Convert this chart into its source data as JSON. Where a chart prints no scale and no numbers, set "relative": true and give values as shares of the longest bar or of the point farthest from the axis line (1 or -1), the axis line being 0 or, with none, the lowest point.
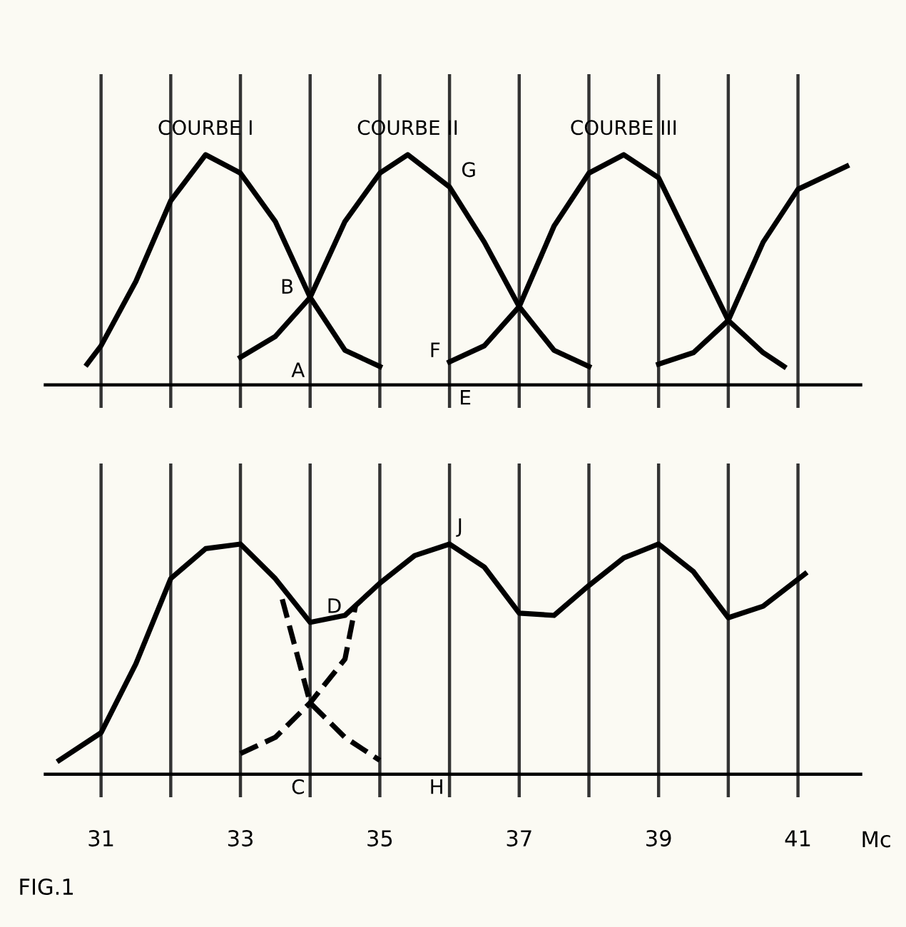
{
  "chart_data": [
    {
      "type": "line",
      "relative": true,
      "xlim": [
        30.2,
        41.9
      ],
      "grid": "x",
      "tick_labels": false,
      "legend": false,
      "marker": "none",
      "line_style": "solid",
      "xticks": [
        {
          "value": 31,
          "label": null
        },
        {
          "value": 32,
          "label": null
        },
        {
          "value": 33,
          "label": null
        },
        {
          "value": 34,
          "label": null
        },
        {
          "value": 35,
          "label": null
        },
        {
          "value": 36,
          "label": null
        },
        {
          "value": 37,
          "label": null
        },
        {
          "value": 38,
          "label": null
        },
        {
          "value": 39,
          "label": null
        },
        {
          "value": 40,
          "label": null
        },
        {
          "value": 41,
          "label": null
        }
      ],
      "series": [
        {
          "name": "COURBE I",
          "color": "#000000",
          "x": [
            30.8,
            31,
            31.5,
            32,
            32.5,
            33,
            33.5,
            34,
            34.5,
            35
          ],
          "values": [
            0.09,
            0.17,
            0.45,
            0.8,
            1.0,
            0.92,
            0.71,
            0.38,
            0.15,
            0.08
          ]
        },
        {
          "name": "COURBE II",
          "color": "#000000",
          "x": [
            33,
            33.5,
            34,
            34.5,
            35,
            35.4,
            36,
            36.5,
            37,
            37.5,
            38
          ],
          "values": [
            0.12,
            0.21,
            0.38,
            0.71,
            0.92,
            1.0,
            0.86,
            0.62,
            0.34,
            0.15,
            0.08
          ]
        },
        {
          "name": "COURBE III",
          "color": "#000000",
          "x": [
            36,
            36.5,
            37,
            37.5,
            38,
            38.5,
            39,
            39.5,
            40,
            40.5,
            40.8
          ],
          "values": [
            0.1,
            0.17,
            0.34,
            0.69,
            0.92,
            1.0,
            0.9,
            0.59,
            0.28,
            0.14,
            0.08
          ]
        },
        {
          "color": "#000000",
          "x": [
            39,
            39.5,
            40,
            40.5,
            41,
            41.7
          ],
          "values": [
            0.09,
            0.14,
            0.28,
            0.62,
            0.85,
            0.95
          ]
        }
      ],
      "annotations": [
        "A",
        "B",
        "E",
        "F",
        "G"
      ]
    },
    {
      "type": "line",
      "relative": true,
      "xlim": [
        30.2,
        41.9
      ],
      "grid": "x",
      "tick_labels": "x",
      "legend": false,
      "marker": "none",
      "xlabel": "Mc",
      "xticks": [
        31,
        {
          "value": 32,
          "label": null
        },
        33,
        {
          "value": 34,
          "label": null
        },
        35,
        {
          "value": 36,
          "label": null
        },
        37,
        {
          "value": 38,
          "label": null
        },
        39,
        {
          "value": 40,
          "label": null
        },
        41
      ],
      "series": [
        {
          "color": "#000000",
          "line_style": "solid",
          "x": [
            30.4,
            31,
            31.5,
            32,
            32.5,
            33,
            33.5,
            34,
            34.5,
            35,
            35.5,
            36,
            36.5,
            37,
            37.5,
            38,
            38.5,
            39,
            39.5,
            40,
            40.5,
            41.1
          ],
          "values": [
            0.06,
            0.18,
            0.48,
            0.85,
            0.98,
            1.0,
            0.85,
            0.66,
            0.69,
            0.83,
            0.95,
            1.0,
            0.9,
            0.7,
            0.69,
            0.82,
            0.94,
            1.0,
            0.88,
            0.68,
            0.73,
            0.87
          ]
        },
        {
          "color": "#000000",
          "line_style": "dashed",
          "x": [
            33.6,
            34,
            34.5,
            35
          ],
          "values": [
            0.76,
            0.31,
            0.16,
            0.06
          ]
        },
        {
          "color": "#000000",
          "line_style": "dashed",
          "x": [
            33,
            33.5,
            34,
            34.5,
            34.65
          ],
          "values": [
            0.09,
            0.16,
            0.31,
            0.5,
            0.73
          ]
        }
      ],
      "annotations": [
        "C",
        "D",
        "H",
        "J",
        "FIG.1"
      ]
    }
  ]
}
